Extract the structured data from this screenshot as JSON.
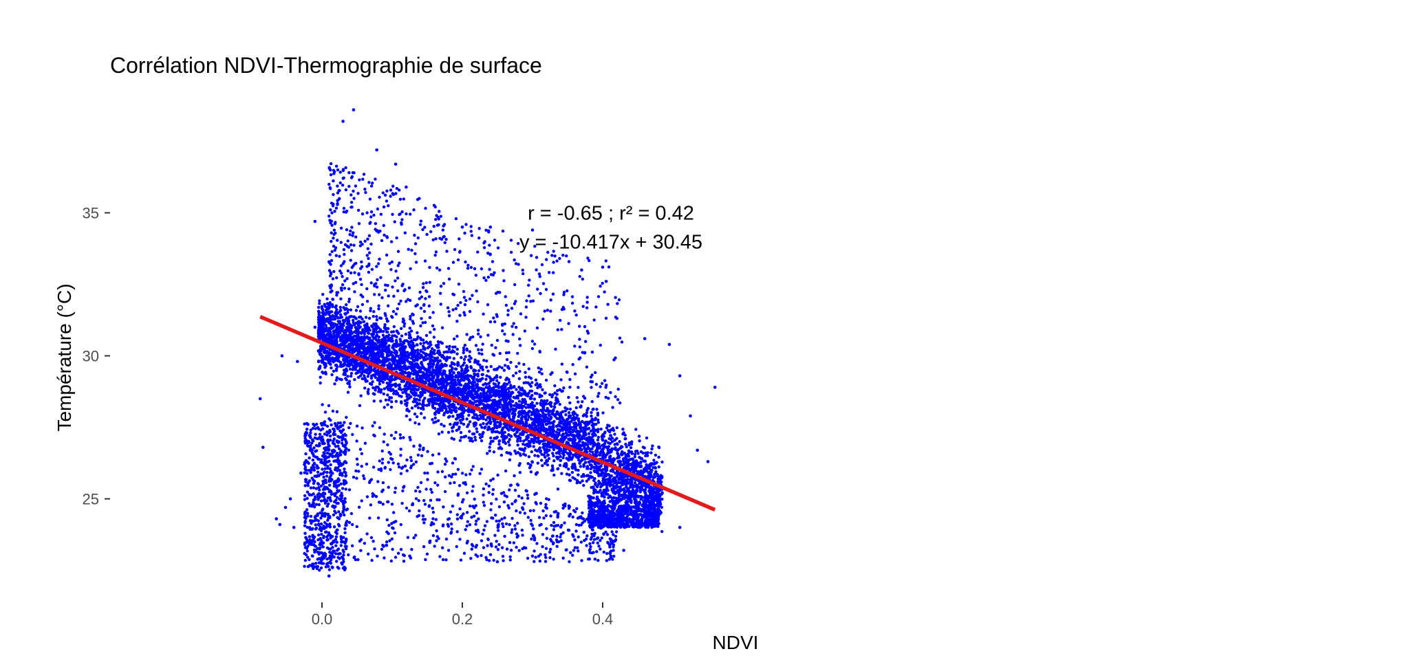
{
  "chart_data": {
    "type": "scatter",
    "title": "Corrélation NDVI-Thermographie de surface",
    "xlabel": "NDVI",
    "ylabel": "Température (°C)",
    "xlim": [
      -0.095,
      0.555
    ],
    "ylim": [
      21.8,
      38.6
    ],
    "x_ticks": [
      0.0,
      0.2,
      0.4
    ],
    "x_tick_labels": [
      "0.0",
      "0.2",
      "0.4"
    ],
    "y_ticks": [
      25,
      30,
      35
    ],
    "y_tick_labels": [
      "25",
      "30",
      "35"
    ],
    "grid": false,
    "legend": "none",
    "annotation_lines": [
      "r = -0.65 ; r² = 0.42",
      "y = -10.417x + 30.45"
    ],
    "annotation_position": {
      "x": 0.4,
      "y": 34.5
    },
    "point_color": "#0000ff",
    "line_color": "#e31a1c",
    "regression": {
      "slope": -10.417,
      "intercept": 30.45,
      "x_range": [
        -0.088,
        0.56
      ]
    },
    "series": [
      {
        "points_sample": [
          [
            -0.088,
            28.5
          ],
          [
            -0.084,
            26.8
          ],
          [
            -0.065,
            24.3
          ],
          [
            -0.06,
            24.1
          ],
          [
            -0.057,
            30.0
          ],
          [
            -0.052,
            24.7
          ],
          [
            -0.045,
            25.0
          ],
          [
            -0.04,
            24.0
          ],
          [
            -0.035,
            29.8
          ],
          [
            -0.03,
            25.9
          ],
          [
            -0.025,
            26.2
          ],
          [
            -0.02,
            27.6
          ],
          [
            -0.01,
            34.7
          ],
          [
            -0.01,
            31.0
          ],
          [
            0.012,
            36.5
          ],
          [
            0.03,
            38.2
          ],
          [
            0.045,
            38.6
          ],
          [
            0.078,
            37.2
          ],
          [
            0.105,
            36.7
          ],
          [
            0.12,
            35.9
          ],
          [
            0.2,
            34.5
          ],
          [
            0.24,
            34.5
          ],
          [
            0.3,
            34.4
          ],
          [
            0.37,
            33.0
          ],
          [
            0.4,
            33.1
          ],
          [
            0.405,
            32.6
          ],
          [
            0.46,
            30.6
          ],
          [
            0.495,
            30.4
          ],
          [
            0.51,
            29.3
          ],
          [
            0.525,
            27.9
          ],
          [
            0.535,
            26.7
          ],
          [
            0.55,
            26.3
          ],
          [
            0.56,
            28.9
          ],
          [
            0.01,
            22.3
          ],
          [
            0.015,
            22.6
          ],
          [
            0.125,
            23.0
          ],
          [
            0.25,
            22.8
          ],
          [
            0.3,
            23.0
          ],
          [
            0.43,
            23.2
          ],
          [
            0.51,
            24.0
          ]
        ],
        "sample_count": 90000
      }
    ]
  }
}
